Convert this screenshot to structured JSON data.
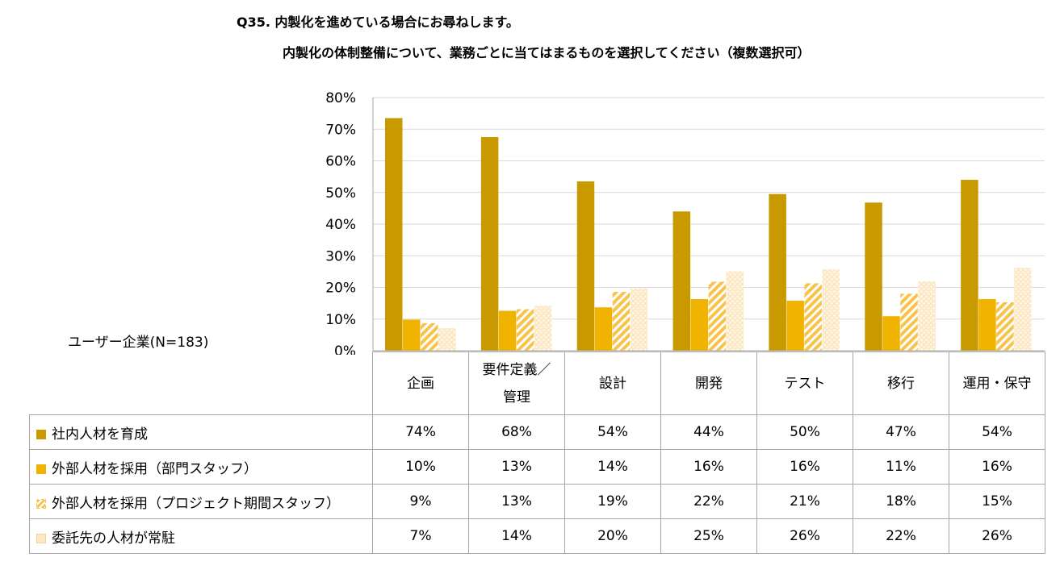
{
  "title_line1": "Q35. 内製化を進めている場合にお尋ねします。",
  "title_line2": "内製化の体制整備について、業務ごとに当てはまるものを選択してください（複数選択可）",
  "respondent_label": "ユーザー企業(N=183)",
  "chart_data": {
    "type": "bar",
    "categories": [
      "企画",
      "要件定義／管理",
      "設計",
      "開発",
      "テスト",
      "移行",
      "運用・保守"
    ],
    "yticks": [
      "0%",
      "10%",
      "20%",
      "30%",
      "40%",
      "50%",
      "60%",
      "70%",
      "80%"
    ],
    "ylim": [
      0,
      80
    ],
    "grid": true,
    "legend": "table-below",
    "series": [
      {
        "name": "社内人材を育成",
        "color": "#c89a00",
        "pattern": "solid",
        "values": [
          73.5,
          67.5,
          53.5,
          44,
          49.5,
          46.8,
          54
        ],
        "labels": [
          "74%",
          "68%",
          "54%",
          "44%",
          "50%",
          "47%",
          "54%"
        ]
      },
      {
        "name": "外部人材を採用（部門スタッフ）",
        "color": "#f0b400",
        "pattern": "solid",
        "values": [
          9.8,
          12.6,
          13.7,
          16.3,
          15.8,
          10.9,
          16.3
        ],
        "labels": [
          "10%",
          "13%",
          "14%",
          "16%",
          "16%",
          "11%",
          "16%"
        ]
      },
      {
        "name": "外部人材を採用（プロジェクト期間スタッフ）",
        "color": "#f7c34a",
        "pattern": "diagonal",
        "values": [
          8.7,
          13.1,
          18.6,
          21.8,
          21.3,
          18,
          15.3
        ],
        "labels": [
          "9%",
          "13%",
          "19%",
          "22%",
          "21%",
          "18%",
          "15%"
        ]
      },
      {
        "name": "委託先の人材が常駐",
        "color": "#fbe3b8",
        "pattern": "dots",
        "values": [
          7.1,
          14.2,
          19.7,
          25.1,
          25.7,
          21.9,
          26.2
        ],
        "labels": [
          "7%",
          "14%",
          "20%",
          "25%",
          "26%",
          "22%",
          "26%"
        ]
      }
    ]
  }
}
